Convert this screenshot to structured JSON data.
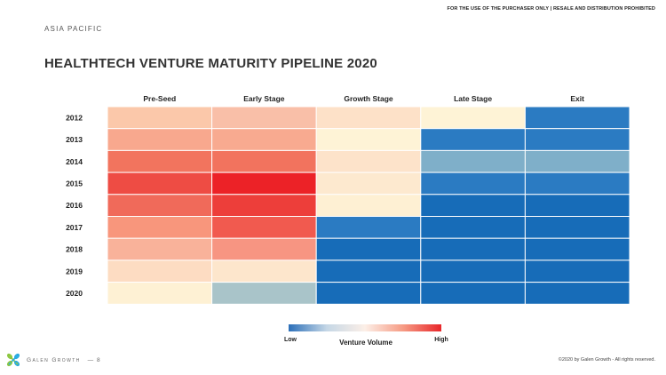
{
  "header": {
    "disclaimer": "FOR THE USE OF THE PURCHASER ONLY | RESALE AND DISTRIBUTION PROHIBITED",
    "region": "ASIA PACIFIC",
    "title": "HEALTHTECH VENTURE MATURITY PIPELINE 2020"
  },
  "chart_data": {
    "type": "heatmap",
    "title": "HEALTHTECH VENTURE MATURITY PIPELINE 2020",
    "x_categories": [
      "Pre-Seed",
      "Early Stage",
      "Growth Stage",
      "Late Stage",
      "Exit"
    ],
    "y_categories": [
      "2012",
      "2013",
      "2014",
      "2015",
      "2016",
      "2017",
      "2018",
      "2019",
      "2020"
    ],
    "colors": [
      [
        "#fbc8aa",
        "#f9bfa8",
        "#fde1c8",
        "#fef3d6",
        "#2b7bc2"
      ],
      [
        "#f8a88e",
        "#f8aa90",
        "#fef3d6",
        "#2b7bc2",
        "#2b7bc2"
      ],
      [
        "#f2745e",
        "#f2735e",
        "#fde3ca",
        "#7fafc9",
        "#7fafc9"
      ],
      [
        "#ee4c44",
        "#ec2227",
        "#fde9cf",
        "#2b7bc2",
        "#2b7bc2"
      ],
      [
        "#f06a5a",
        "#ed3e3a",
        "#fef0d3",
        "#176cb8",
        "#176cb8"
      ],
      [
        "#f8967c",
        "#f15a4f",
        "#2b7bc2",
        "#176cb8",
        "#176cb8"
      ],
      [
        "#f9b29a",
        "#f79582",
        "#176cb8",
        "#176cb8",
        "#176cb8"
      ],
      [
        "#fddcc2",
        "#fde6cc",
        "#176cb8",
        "#176cb8",
        "#176cb8"
      ],
      [
        "#fef1d4",
        "#a9c4c9",
        "#176cb8",
        "#176cb8",
        "#176cb8"
      ]
    ],
    "legend": {
      "title": "Venture Volume",
      "low_label": "Low",
      "high_label": "High",
      "gradient": [
        "#2b6fb9",
        "#c5d7e6",
        "#fcefe7",
        "#f69b84",
        "#e8262a"
      ]
    }
  },
  "footer": {
    "brand": "Galen Growth",
    "page": "— 8",
    "copyright": "©2020 by Galen Growth  - All rights reserved."
  }
}
